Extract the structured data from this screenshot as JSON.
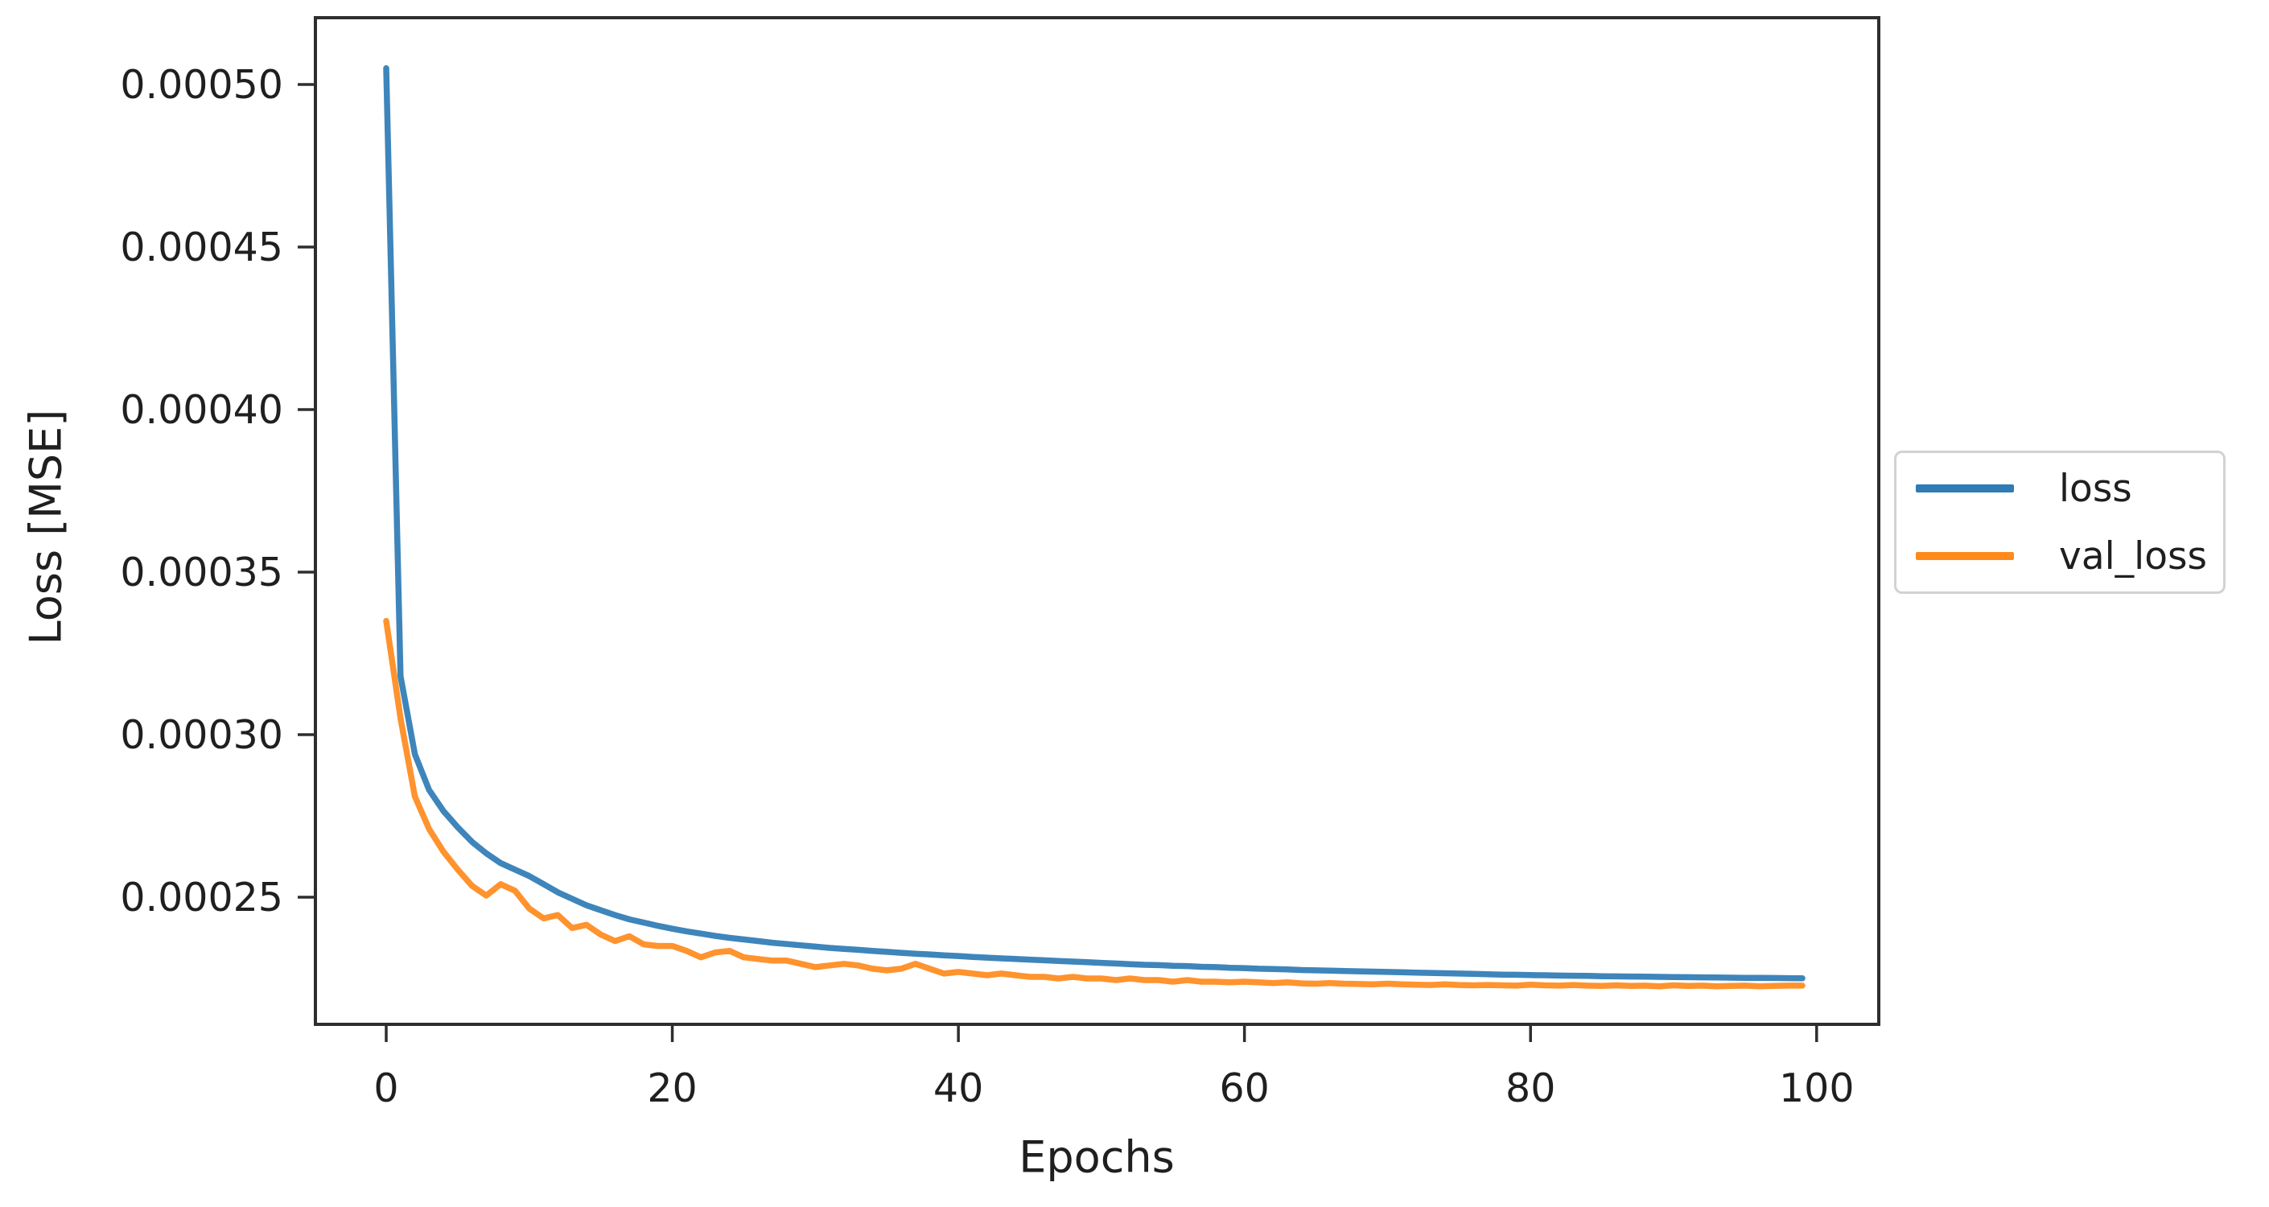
{
  "figure": {
    "background": "#ffffff"
  },
  "axes": {
    "frame_color": "#2e2e2e",
    "text_color": "#1f1f1f",
    "y_tick_labels": [
      "0.00025",
      "0.00030",
      "0.00035",
      "0.00040",
      "0.00045",
      "0.00050"
    ],
    "x_tick_labels": [
      "0",
      "20",
      "40",
      "60",
      "80",
      "100"
    ]
  },
  "legend": {
    "entries": [
      {
        "label": "loss",
        "color": "#2e7bb5"
      },
      {
        "label": "val_loss",
        "color": "#ff8a1c"
      }
    ]
  },
  "chart_data": {
    "type": "line",
    "title": "",
    "xlabel": "Epochs",
    "ylabel": "Loss [MSE]",
    "x_note": "epoch index, one data point per epoch, 0 through 99",
    "xlim": [
      -4.95,
      104.3
    ],
    "ylim": [
      0.000208,
      0.000521
    ],
    "x_tick_values": [
      0,
      20,
      40,
      60,
      80,
      100
    ],
    "y_tick_values": [
      0.00025,
      0.0003,
      0.00035,
      0.0004,
      0.00045,
      0.0005
    ],
    "grid": false,
    "legend_position": "center right, outside plot area",
    "series": [
      {
        "name": "loss",
        "color": "#2e7bb5",
        "values": [
          0.000505,
          0.000318,
          0.000294,
          0.000283,
          0.0002765,
          0.0002715,
          0.000267,
          0.0002635,
          0.0002605,
          0.0002585,
          0.0002565,
          0.000254,
          0.0002515,
          0.0002495,
          0.0002475,
          0.000246,
          0.0002445,
          0.0002432,
          0.0002422,
          0.0002412,
          0.0002403,
          0.0002395,
          0.0002388,
          0.0002381,
          0.0002375,
          0.000237,
          0.0002365,
          0.000236,
          0.0002356,
          0.0002352,
          0.0002348,
          0.0002344,
          0.0002341,
          0.0002338,
          0.0002335,
          0.0002332,
          0.0002329,
          0.0002326,
          0.0002324,
          0.0002321,
          0.0002319,
          0.0002316,
          0.0002314,
          0.0002312,
          0.000231,
          0.0002308,
          0.0002306,
          0.0002304,
          0.0002302,
          0.00023,
          0.0002298,
          0.0002296,
          0.0002294,
          0.0002292,
          0.0002291,
          0.0002289,
          0.0002288,
          0.0002286,
          0.0002285,
          0.0002283,
          0.0002282,
          0.000228,
          0.0002279,
          0.0002278,
          0.0002276,
          0.0002275,
          0.0002274,
          0.0002273,
          0.0002272,
          0.0002271,
          0.000227,
          0.0002269,
          0.0002268,
          0.0002267,
          0.0002266,
          0.0002265,
          0.0002264,
          0.0002263,
          0.0002262,
          0.00022615,
          0.00022605,
          0.000226,
          0.0002259,
          0.00022585,
          0.0002258,
          0.0002257,
          0.00022565,
          0.0002256,
          0.00022555,
          0.0002255,
          0.00022545,
          0.0002254,
          0.00022535,
          0.0002253,
          0.00022525,
          0.0002252,
          0.0002252,
          0.00022515,
          0.0002251,
          0.00022505
        ]
      },
      {
        "name": "val_loss",
        "color": "#ff8a1c",
        "values": [
          0.000335,
          0.000305,
          0.000281,
          0.000271,
          0.000264,
          0.0002585,
          0.0002535,
          0.0002505,
          0.000254,
          0.000252,
          0.0002465,
          0.0002435,
          0.0002445,
          0.0002405,
          0.0002415,
          0.0002385,
          0.0002365,
          0.000238,
          0.0002355,
          0.000235,
          0.000235,
          0.0002335,
          0.0002315,
          0.000233,
          0.0002335,
          0.0002315,
          0.000231,
          0.0002305,
          0.0002305,
          0.0002295,
          0.0002285,
          0.000229,
          0.0002295,
          0.000229,
          0.000228,
          0.0002275,
          0.000228,
          0.0002295,
          0.000228,
          0.0002265,
          0.000227,
          0.0002265,
          0.000226,
          0.0002265,
          0.000226,
          0.0002255,
          0.0002255,
          0.000225,
          0.0002255,
          0.000225,
          0.000225,
          0.0002245,
          0.000225,
          0.0002245,
          0.0002245,
          0.000224,
          0.0002245,
          0.000224,
          0.000224,
          0.0002238,
          0.000224,
          0.0002238,
          0.0002236,
          0.0002238,
          0.0002235,
          0.0002234,
          0.0002236,
          0.0002234,
          0.0002233,
          0.0002232,
          0.0002234,
          0.0002232,
          0.0002231,
          0.000223,
          0.0002232,
          0.000223,
          0.0002229,
          0.000223,
          0.0002229,
          0.0002228,
          0.0002231,
          0.0002229,
          0.0002228,
          0.000223,
          0.0002228,
          0.0002227,
          0.0002229,
          0.0002227,
          0.0002228,
          0.0002226,
          0.0002229,
          0.0002227,
          0.0002228,
          0.0002226,
          0.0002227,
          0.0002228,
          0.0002226,
          0.0002227,
          0.0002228,
          0.0002228
        ]
      }
    ]
  }
}
